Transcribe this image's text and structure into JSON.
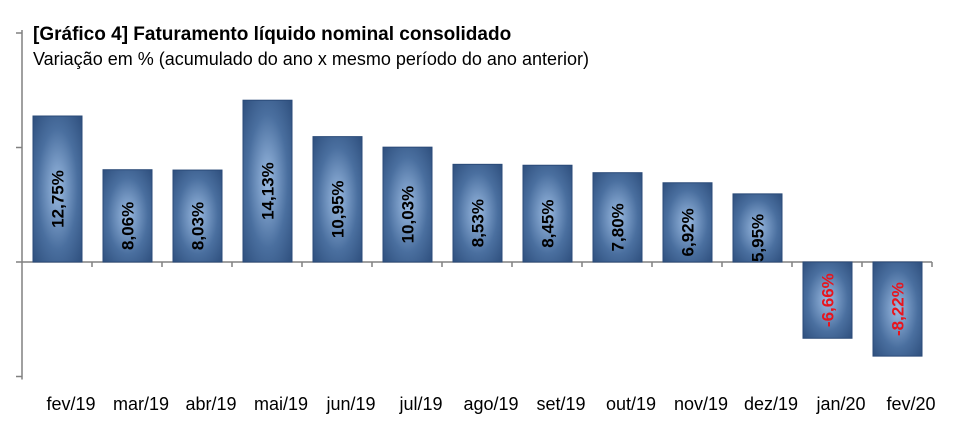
{
  "chart_data": {
    "type": "bar",
    "title": "[Gráfico 4] Faturamento líquido nominal consolidado",
    "subtitle": "Variação em % (acumulado do ano x mesmo período do ano anterior)",
    "categories": [
      "fev/19",
      "mar/19",
      "abr/19",
      "mai/19",
      "jun/19",
      "jul/19",
      "ago/19",
      "set/19",
      "out/19",
      "nov/19",
      "dez/19",
      "jan/20",
      "fev/20"
    ],
    "values": [
      12.75,
      8.06,
      8.03,
      14.13,
      10.95,
      10.03,
      8.53,
      8.45,
      7.8,
      6.92,
      5.95,
      -6.66,
      -8.22
    ],
    "data_labels": [
      "12,75%",
      "8,06%",
      "8,03%",
      "14,13%",
      "10,95%",
      "10,03%",
      "8,53%",
      "8,45%",
      "7,80%",
      "6,92%",
      "5,95%",
      "-6,66%",
      "-8,22%"
    ],
    "ylim": [
      -10,
      20
    ],
    "y_ticks": [
      -10,
      0,
      10,
      20
    ],
    "y_tick_labels_shown": false,
    "grid": false,
    "legend": "none",
    "colors": {
      "bar": "#2f5281",
      "bar_highlight": "#8fb0d9",
      "label_positive": "#000000",
      "label_negative": "#e8141c",
      "axis": "#808080"
    }
  }
}
